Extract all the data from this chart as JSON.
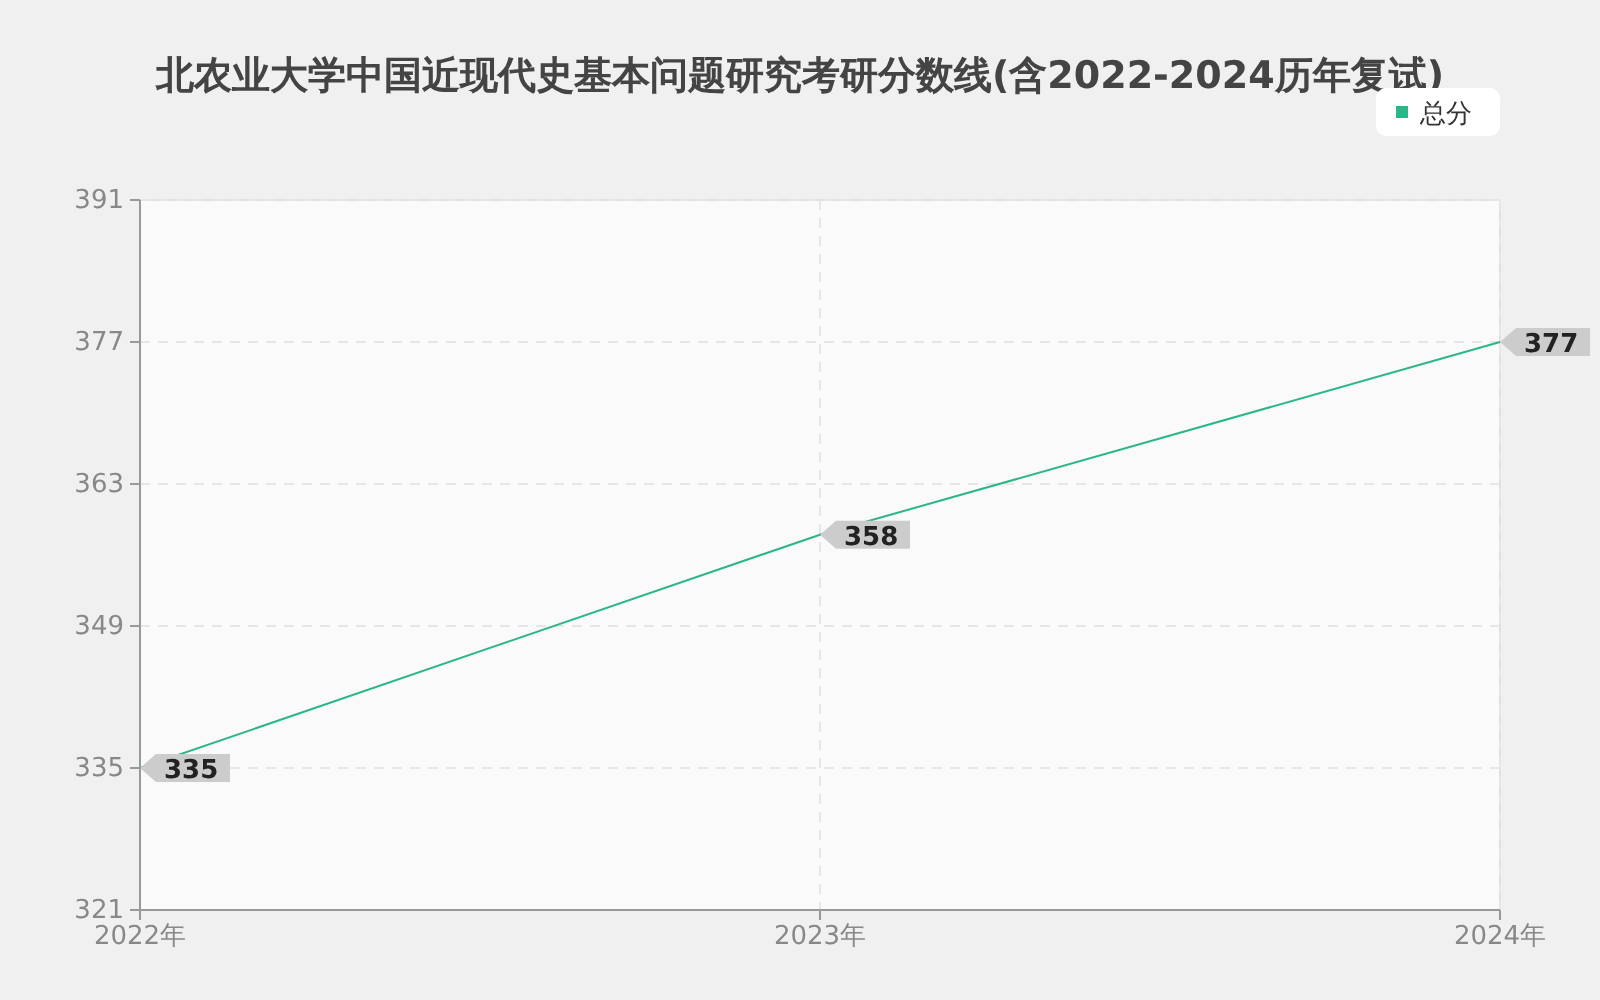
{
  "chart_data": {
    "type": "line",
    "title": "北农业大学中国近现代史基本问题研究考研分数线(含2022-2024历年复试)",
    "categories": [
      "2022年",
      "2023年",
      "2024年"
    ],
    "series": [
      {
        "name": "总分",
        "color": "#2ab687",
        "values": [
          335,
          358,
          377
        ]
      }
    ],
    "ylim": [
      321,
      391
    ],
    "yticks": [
      321,
      335,
      349,
      363,
      377,
      391
    ],
    "grid": true,
    "legend": "top right",
    "data_labels": true,
    "marker": "none",
    "line_style": "solid"
  }
}
